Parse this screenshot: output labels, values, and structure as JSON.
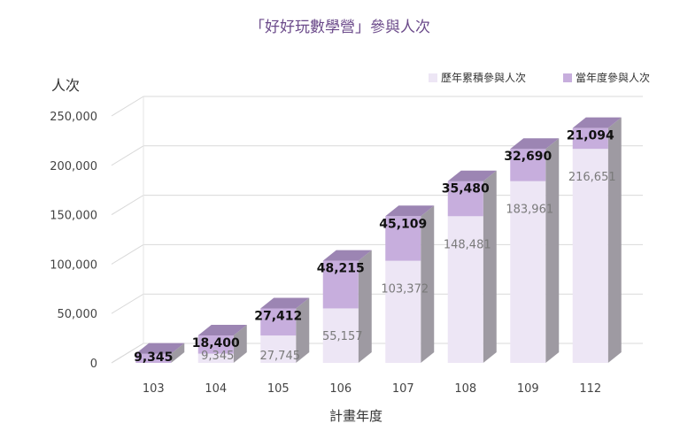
{
  "chart_data": {
    "type": "bar",
    "stacked": true,
    "style": "3d",
    "title": "「好好玩數學營」參與人次",
    "ylabel": "人次",
    "xlabel": "計畫年度",
    "categories": [
      "103",
      "104",
      "105",
      "106",
      "107",
      "108",
      "109",
      "112"
    ],
    "series": [
      {
        "name": "歷年累積參與人次",
        "values": [
          0,
          9345,
          27745,
          55157,
          103372,
          148481,
          183961,
          216651
        ],
        "color": "#ede6f5"
      },
      {
        "name": "當年度參與人次",
        "values": [
          9345,
          18400,
          27412,
          48215,
          45109,
          35480,
          32690,
          21094
        ],
        "color": "#c7aedd"
      }
    ],
    "base_labels": [
      "",
      "9,345",
      "27,745",
      "55,157",
      "103,372",
      "148,481",
      "183,961",
      "216,651"
    ],
    "top_labels": [
      "9,345",
      "18,400",
      "27,412",
      "48,215",
      "45,109",
      "35,480",
      "32,690",
      "21,094"
    ],
    "yticks": [
      0,
      50000,
      100000,
      150000,
      200000,
      250000
    ],
    "ytick_labels": [
      "0",
      "50,000",
      "100,000",
      "150,000",
      "200,000",
      "250,000"
    ],
    "ylim": [
      0,
      250000
    ],
    "grid": true,
    "legend": "top-right"
  }
}
